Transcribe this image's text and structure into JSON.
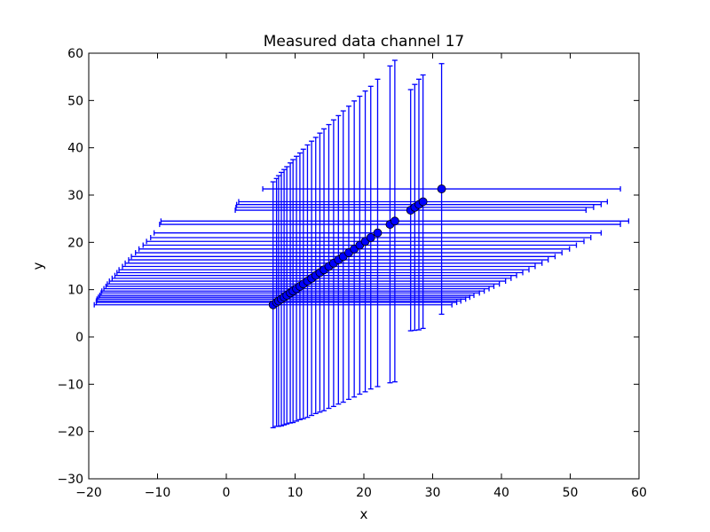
{
  "chart_data": {
    "type": "scatter",
    "title": "Measured data channel 17",
    "xlabel": "x",
    "ylabel": "y",
    "xlim": [
      -20,
      60
    ],
    "ylim": [
      -30,
      60
    ],
    "xticks": [
      "−20",
      "−10",
      "0",
      "10",
      "20",
      "30",
      "40",
      "50",
      "60"
    ],
    "yticks": [
      "−30",
      "−20",
      "−10",
      "0",
      "10",
      "20",
      "30",
      "40",
      "50",
      "60"
    ],
    "grid": false,
    "series": [
      {
        "marker_color": "#0000ff",
        "errorbar_color": "#0000ff",
        "points": [
          {
            "x": 6.8,
            "y": 6.8,
            "xerr": 26.0,
            "yerr": 26.0
          },
          {
            "x": 7.3,
            "y": 7.3,
            "xerr": 26.2,
            "yerr": 26.2
          },
          {
            "x": 7.6,
            "y": 7.6,
            "xerr": 26.5,
            "yerr": 26.5
          },
          {
            "x": 8.0,
            "y": 8.0,
            "xerr": 26.8,
            "yerr": 26.8
          },
          {
            "x": 8.4,
            "y": 8.4,
            "xerr": 27.0,
            "yerr": 27.0
          },
          {
            "x": 8.8,
            "y": 8.8,
            "xerr": 27.2,
            "yerr": 27.2
          },
          {
            "x": 9.3,
            "y": 9.3,
            "xerr": 27.5,
            "yerr": 27.5
          },
          {
            "x": 9.7,
            "y": 9.7,
            "xerr": 27.8,
            "yerr": 27.8
          },
          {
            "x": 10.2,
            "y": 10.2,
            "xerr": 28.0,
            "yerr": 28.0
          },
          {
            "x": 10.7,
            "y": 10.7,
            "xerr": 28.2,
            "yerr": 28.2
          },
          {
            "x": 11.2,
            "y": 11.2,
            "xerr": 28.5,
            "yerr": 28.5
          },
          {
            "x": 11.8,
            "y": 11.8,
            "xerr": 28.8,
            "yerr": 28.8
          },
          {
            "x": 12.4,
            "y": 12.4,
            "xerr": 29.0,
            "yerr": 29.0
          },
          {
            "x": 13.0,
            "y": 13.0,
            "xerr": 29.2,
            "yerr": 29.2
          },
          {
            "x": 13.6,
            "y": 13.6,
            "xerr": 29.5,
            "yerr": 29.5
          },
          {
            "x": 14.2,
            "y": 14.2,
            "xerr": 29.8,
            "yerr": 29.8
          },
          {
            "x": 14.9,
            "y": 14.9,
            "xerr": 30.0,
            "yerr": 30.0
          },
          {
            "x": 15.6,
            "y": 15.6,
            "xerr": 30.3,
            "yerr": 30.3
          },
          {
            "x": 16.3,
            "y": 16.3,
            "xerr": 30.5,
            "yerr": 30.5
          },
          {
            "x": 17.0,
            "y": 17.0,
            "xerr": 30.8,
            "yerr": 30.8
          },
          {
            "x": 17.8,
            "y": 17.8,
            "xerr": 31.0,
            "yerr": 31.0
          },
          {
            "x": 18.6,
            "y": 18.6,
            "xerr": 31.3,
            "yerr": 31.3
          },
          {
            "x": 19.4,
            "y": 19.4,
            "xerr": 31.5,
            "yerr": 31.5
          },
          {
            "x": 20.2,
            "y": 20.2,
            "xerr": 31.8,
            "yerr": 31.8
          },
          {
            "x": 21.0,
            "y": 21.0,
            "xerr": 32.0,
            "yerr": 32.0
          },
          {
            "x": 22.0,
            "y": 22.0,
            "xerr": 32.5,
            "yerr": 32.5
          },
          {
            "x": 23.8,
            "y": 23.8,
            "xerr": 33.5,
            "yerr": 33.5
          },
          {
            "x": 24.5,
            "y": 24.5,
            "xerr": 34.0,
            "yerr": 34.0
          },
          {
            "x": 26.8,
            "y": 26.8,
            "xerr": 25.5,
            "yerr": 25.5
          },
          {
            "x": 27.4,
            "y": 27.4,
            "xerr": 26.0,
            "yerr": 26.0
          },
          {
            "x": 28.0,
            "y": 28.0,
            "xerr": 26.5,
            "yerr": 26.5
          },
          {
            "x": 28.6,
            "y": 28.6,
            "xerr": 26.8,
            "yerr": 26.8
          },
          {
            "x": 31.3,
            "y": 31.3,
            "xerr": 26.0,
            "yerr": 26.5
          }
        ]
      }
    ]
  }
}
